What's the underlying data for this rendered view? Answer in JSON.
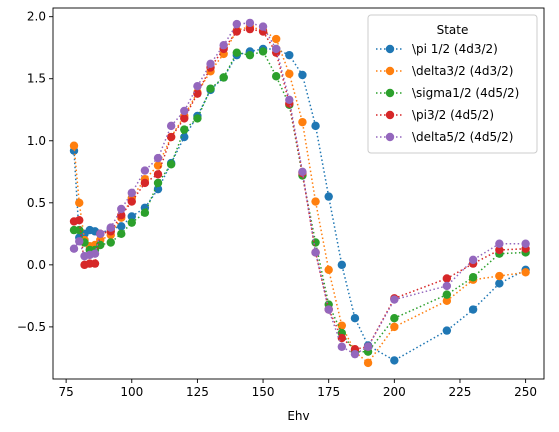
{
  "chart_data": {
    "type": "line",
    "xlabel": "Ehv",
    "ylabel": "",
    "xlim": [
      70,
      257
    ],
    "ylim": [
      -0.92,
      2.07
    ],
    "x_ticks": [
      75,
      100,
      125,
      150,
      175,
      200,
      225,
      250
    ],
    "y_ticks": [
      -0.5,
      0.0,
      0.5,
      1.0,
      1.5,
      2.0
    ],
    "x_tick_labels": [
      "75",
      "100",
      "125",
      "150",
      "175",
      "200",
      "225",
      "250"
    ],
    "y_tick_labels": [
      "−0.5",
      "0.0",
      "0.5",
      "1.0",
      "1.5",
      "2.0"
    ],
    "grid": false,
    "line_style": "dotted",
    "marker": "circle",
    "legend": {
      "title": "State",
      "placement": "top-right"
    },
    "x": [
      78,
      80,
      82,
      84,
      86,
      88,
      92,
      96,
      100,
      105,
      110,
      115,
      120,
      125,
      130,
      135,
      140,
      145,
      150,
      155,
      160,
      165,
      170,
      175,
      180,
      185,
      190,
      200,
      220,
      230,
      240,
      250
    ],
    "series": [
      {
        "name": "\\pi 1/2 (4d3/2)",
        "color": "#1f77b4",
        "values": [
          0.92,
          0.22,
          0.25,
          0.28,
          0.27,
          0.25,
          0.29,
          0.31,
          0.39,
          0.46,
          0.61,
          0.82,
          1.03,
          1.2,
          1.41,
          1.51,
          1.69,
          1.72,
          1.74,
          1.74,
          1.69,
          1.53,
          1.12,
          0.55,
          0.0,
          -0.43,
          -0.65,
          -0.77,
          -0.53,
          -0.36,
          -0.15,
          -0.04
        ]
      },
      {
        "name": "\\delta3/2 (4d3/2)",
        "color": "#ff7f0e",
        "values": [
          0.96,
          0.5,
          0.2,
          0.15,
          0.16,
          0.2,
          0.24,
          0.38,
          0.54,
          0.69,
          0.8,
          1.03,
          1.2,
          1.39,
          1.56,
          1.7,
          1.89,
          1.92,
          1.89,
          1.82,
          1.54,
          1.15,
          0.51,
          -0.04,
          -0.49,
          -0.7,
          -0.79,
          -0.5,
          -0.29,
          -0.12,
          -0.09,
          -0.06
        ]
      },
      {
        "name": "\\sigma1/2 (4d5/2)",
        "color": "#2ca02c",
        "values": [
          0.28,
          0.28,
          0.18,
          0.12,
          0.12,
          0.16,
          0.18,
          0.25,
          0.34,
          0.42,
          0.66,
          0.81,
          1.09,
          1.18,
          1.42,
          1.51,
          1.71,
          1.69,
          1.72,
          1.52,
          1.29,
          0.72,
          0.18,
          -0.32,
          -0.55,
          -0.7,
          -0.7,
          -0.43,
          -0.24,
          -0.1,
          0.09,
          0.1
        ]
      },
      {
        "name": "\\pi3/2 (4d5/2)",
        "color": "#d62728",
        "values": [
          0.35,
          0.36,
          0.0,
          0.01,
          0.01,
          0.25,
          0.27,
          0.4,
          0.51,
          0.66,
          0.73,
          1.03,
          1.18,
          1.38,
          1.59,
          1.74,
          1.88,
          1.9,
          1.88,
          1.71,
          1.3,
          0.74,
          0.1,
          -0.36,
          -0.59,
          -0.68,
          -0.66,
          -0.27,
          -0.11,
          0.01,
          0.12,
          0.13
        ]
      },
      {
        "name": "\\delta5/2 (4d5/2)",
        "color": "#9467bd",
        "values": [
          0.13,
          0.19,
          0.07,
          0.08,
          0.09,
          0.25,
          0.3,
          0.45,
          0.58,
          0.76,
          0.86,
          1.12,
          1.24,
          1.44,
          1.62,
          1.77,
          1.94,
          1.95,
          1.92,
          1.74,
          1.33,
          0.75,
          0.1,
          -0.36,
          -0.66,
          -0.72,
          -0.66,
          -0.28,
          -0.17,
          0.04,
          0.17,
          0.17
        ]
      }
    ]
  }
}
